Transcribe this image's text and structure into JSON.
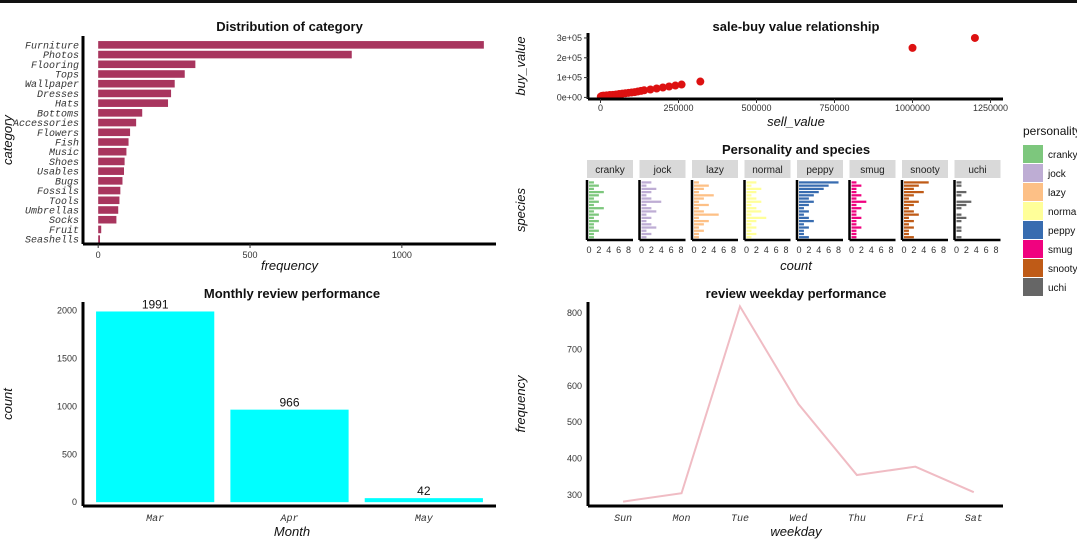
{
  "chart_data": [
    {
      "id": "category",
      "type": "bar",
      "orientation": "horizontal",
      "title": "Distribution of category",
      "xlabel": "frequency",
      "ylabel": "category",
      "color": "#a8355e",
      "categories": [
        "Furniture",
        "Photos",
        "Flooring",
        "Tops",
        "Wallpaper",
        "Dresses",
        "Hats",
        "Bottoms",
        "Accessories",
        "Flowers",
        "Fish",
        "Music",
        "Shoes",
        "Usables",
        "Bugs",
        "Fossils",
        "Tools",
        "Umbrellas",
        "Socks",
        "Fruit",
        "Seashells"
      ],
      "values": [
        1270,
        835,
        320,
        285,
        252,
        240,
        230,
        145,
        125,
        105,
        100,
        93,
        87,
        85,
        80,
        73,
        70,
        66,
        60,
        10,
        6
      ],
      "xticks": [
        0,
        500,
        1000
      ],
      "xlim": [
        -50,
        1310
      ]
    },
    {
      "id": "salebuy",
      "type": "scatter",
      "title": "sale-buy value relationship",
      "xlabel": "sell_value",
      "ylabel": "buy_value",
      "color": "#dd1111",
      "xticks": [
        "0",
        "250000",
        "500000",
        "750000",
        "1000000",
        "1250000"
      ],
      "xtick_values": [
        0,
        250000,
        500000,
        750000,
        1000000,
        1250000
      ],
      "yticks": [
        "0e+00",
        "1e+05",
        "2e+05",
        "3e+05"
      ],
      "ytick_values": [
        0,
        100000,
        200000,
        300000
      ],
      "xlim": [
        -40000,
        1290000
      ],
      "ylim": [
        -8000,
        325000
      ],
      "points": [
        [
          1000,
          4000
        ],
        [
          5000,
          8000
        ],
        [
          10000,
          9000
        ],
        [
          20000,
          10000
        ],
        [
          30000,
          12000
        ],
        [
          40000,
          13000
        ],
        [
          50000,
          15000
        ],
        [
          60000,
          17000
        ],
        [
          70000,
          19000
        ],
        [
          80000,
          21000
        ],
        [
          90000,
          23000
        ],
        [
          100000,
          25000
        ],
        [
          110000,
          27000
        ],
        [
          120000,
          30000
        ],
        [
          130000,
          33000
        ],
        [
          140000,
          36000
        ],
        [
          160000,
          40000
        ],
        [
          180000,
          45000
        ],
        [
          200000,
          50000
        ],
        [
          220000,
          55000
        ],
        [
          240000,
          60000
        ],
        [
          260000,
          65000
        ],
        [
          320000,
          80000
        ],
        [
          1000000,
          250000
        ],
        [
          1200000,
          300000
        ]
      ]
    },
    {
      "id": "personality",
      "type": "bar",
      "orientation": "horizontal",
      "facets": true,
      "title": "Personality and species",
      "xlabel": "count",
      "ylabel": "species",
      "xticks": [
        0,
        2,
        4,
        6,
        8
      ],
      "legend_title": "personality",
      "legend_position": "right",
      "series": [
        {
          "name": "cranky",
          "color": "#7dc77d",
          "values": [
            1,
            2,
            1,
            3,
            2,
            1,
            2,
            1,
            3,
            1,
            2,
            1,
            2,
            1,
            1,
            2,
            1,
            1
          ]
        },
        {
          "name": "jock",
          "color": "#beadd4",
          "values": [
            2,
            1,
            3,
            2,
            1,
            2,
            4,
            1,
            2,
            3,
            1,
            2,
            1,
            2,
            3,
            1,
            2,
            1
          ]
        },
        {
          "name": "lazy",
          "color": "#fdc086",
          "values": [
            1,
            3,
            2,
            1,
            4,
            2,
            1,
            3,
            1,
            2,
            5,
            1,
            3,
            2,
            1,
            2,
            1,
            1
          ]
        },
        {
          "name": "normal",
          "color": "#ffff99",
          "values": [
            2,
            1,
            3,
            2,
            1,
            2,
            3,
            1,
            2,
            3,
            1,
            4,
            2,
            1,
            2,
            1,
            2,
            1
          ]
        },
        {
          "name": "peppy",
          "color": "#386cb0",
          "values": [
            8,
            6,
            5,
            4,
            3,
            2,
            3,
            2,
            1,
            2,
            1,
            2,
            3,
            1,
            2,
            1,
            1,
            2
          ]
        },
        {
          "name": "smug",
          "color": "#f0027f",
          "values": [
            1,
            2,
            1,
            1,
            2,
            1,
            3,
            1,
            2,
            1,
            1,
            2,
            1,
            1,
            2,
            1,
            1,
            1
          ]
        },
        {
          "name": "snooty",
          "color": "#bf5b17",
          "values": [
            5,
            3,
            2,
            4,
            2,
            1,
            3,
            2,
            1,
            2,
            3,
            1,
            2,
            1,
            2,
            1,
            1,
            2
          ]
        },
        {
          "name": "uchi",
          "color": "#666666",
          "values": [
            1,
            1,
            0,
            2,
            1,
            0,
            3,
            2,
            1,
            0,
            1,
            2,
            1,
            0,
            1,
            1,
            0,
            1
          ]
        }
      ]
    },
    {
      "id": "monthly",
      "type": "bar",
      "title": "Monthly review performance",
      "xlabel": "Month",
      "ylabel": "count",
      "color": "#00ffff",
      "categories": [
        "Mar",
        "Apr",
        "May"
      ],
      "values": [
        1991,
        966,
        42
      ],
      "data_labels": [
        "1991",
        "966",
        "42"
      ],
      "yticks": [
        0,
        500,
        1000,
        1500,
        2000
      ],
      "ylim": [
        -40,
        2090
      ]
    },
    {
      "id": "weekday",
      "type": "line",
      "title": "review weekday performance",
      "xlabel": "weekday",
      "ylabel": "frequency",
      "color": "#f0bcc4",
      "categories": [
        "Sun",
        "Mon",
        "Tue",
        "Wed",
        "Thu",
        "Fri",
        "Sat"
      ],
      "values": [
        282,
        305,
        818,
        550,
        355,
        378,
        308
      ],
      "yticks": [
        300,
        400,
        500,
        600,
        700,
        800
      ],
      "ylim": [
        270,
        830
      ]
    }
  ]
}
